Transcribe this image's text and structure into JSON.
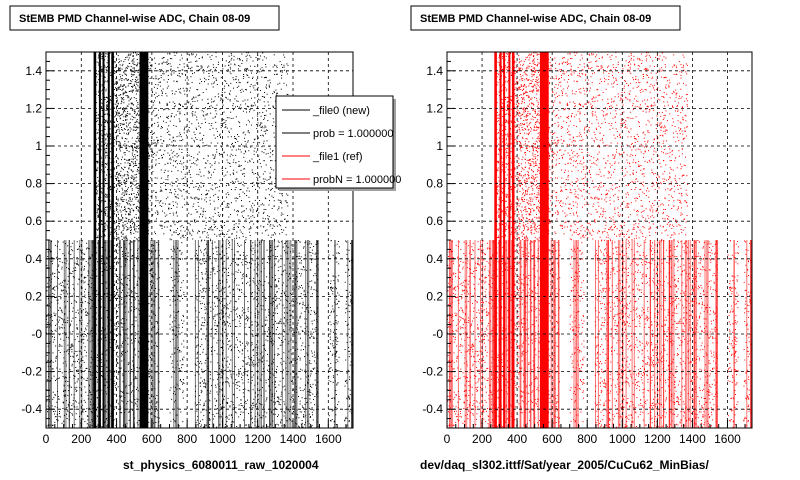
{
  "footer": {
    "left_caption": "st_physics_6080011_raw_1020004",
    "right_caption": "dev/daq_sl302.ittf/Sat/year_2005/CuCu62_MinBias/"
  },
  "chart_data": [
    {
      "type": "scatter",
      "title": "StEMB PMD Channel-wise ADC, Chain 08-09",
      "xlim": [
        0,
        1740
      ],
      "ylim": [
        -0.5,
        1.5
      ],
      "x_ticks": [
        0,
        200,
        400,
        600,
        800,
        1000,
        1200,
        1400,
        1600
      ],
      "x_tick_labels": [
        "0",
        "200",
        "400",
        "600",
        "800",
        "1000",
        "1200",
        "1400",
        "1600"
      ],
      "y_ticks": [
        -0.4,
        -0.2,
        0,
        0.2,
        0.4,
        0.6,
        0.8,
        1,
        1.2,
        1.4
      ],
      "y_tick_labels": [
        "-0.4",
        "-0.2",
        "-0",
        "0.2",
        "0.4",
        "0.6",
        "0.8",
        "1",
        "1.2",
        "1.4"
      ],
      "grid": true,
      "marker_color": "#000000",
      "series": [
        {
          "upper_band_y": [
            0.5,
            1.5
          ],
          "upper_band_x": [
            [
              270,
              580
            ],
            [
              580,
              1370
            ]
          ],
          "solid_columns_x": [
            [
              270,
              285
            ],
            [
              300,
              310
            ],
            [
              320,
              330
            ],
            [
              350,
              360
            ],
            [
              370,
              385
            ],
            [
              530,
              580
            ]
          ],
          "lower_band_y": [
            -0.5,
            0.5
          ],
          "lower_band_x": [
            [
              0,
              1740
            ]
          ],
          "empty_columns_x": [
            [
              640,
              700
            ],
            [
              780,
              840
            ],
            [
              1540,
              1600
            ],
            [
              1660,
              1690
            ]
          ]
        }
      ],
      "legend": {
        "position": "top-right",
        "entries": [
          {
            "label": "_file0 (new)",
            "color": "#000000"
          },
          {
            "label": "prob = 1.000000",
            "color": "#000000"
          },
          {
            "label": "_file1 (ref)",
            "color": "#ff0000"
          },
          {
            "label": "probN = 1.000000",
            "color": "#ff0000"
          }
        ]
      }
    },
    {
      "type": "scatter",
      "title": "StEMB PMD Channel-wise ADC, Chain 08-09",
      "xlim": [
        0,
        1740
      ],
      "ylim": [
        -0.5,
        1.5
      ],
      "x_ticks": [
        0,
        200,
        400,
        600,
        800,
        1000,
        1200,
        1400,
        1600
      ],
      "x_tick_labels": [
        "0",
        "200",
        "400",
        "600",
        "800",
        "1000",
        "1200",
        "1400",
        "1600"
      ],
      "y_ticks": [
        -0.4,
        -0.2,
        0,
        0.2,
        0.4,
        0.6,
        0.8,
        1,
        1.2,
        1.4
      ],
      "y_tick_labels": [
        "-0.4",
        "-0.2",
        "-0",
        "0.2",
        "0.4",
        "0.6",
        "0.8",
        "1",
        "1.2",
        "1.4"
      ],
      "grid": true,
      "marker_color": "#ff0000",
      "series": [
        {
          "upper_band_y": [
            0.5,
            1.5
          ],
          "upper_band_x": [
            [
              270,
              580
            ],
            [
              580,
              1370
            ]
          ],
          "solid_columns_x": [
            [
              270,
              285
            ],
            [
              300,
              310
            ],
            [
              320,
              330
            ],
            [
              350,
              360
            ],
            [
              370,
              385
            ],
            [
              530,
              580
            ]
          ],
          "lower_band_y": [
            -0.5,
            0.5
          ],
          "lower_band_x": [
            [
              0,
              1740
            ]
          ],
          "empty_columns_x": [
            [
              640,
              700
            ],
            [
              780,
              840
            ],
            [
              1540,
              1600
            ],
            [
              1660,
              1690
            ]
          ]
        }
      ]
    }
  ]
}
